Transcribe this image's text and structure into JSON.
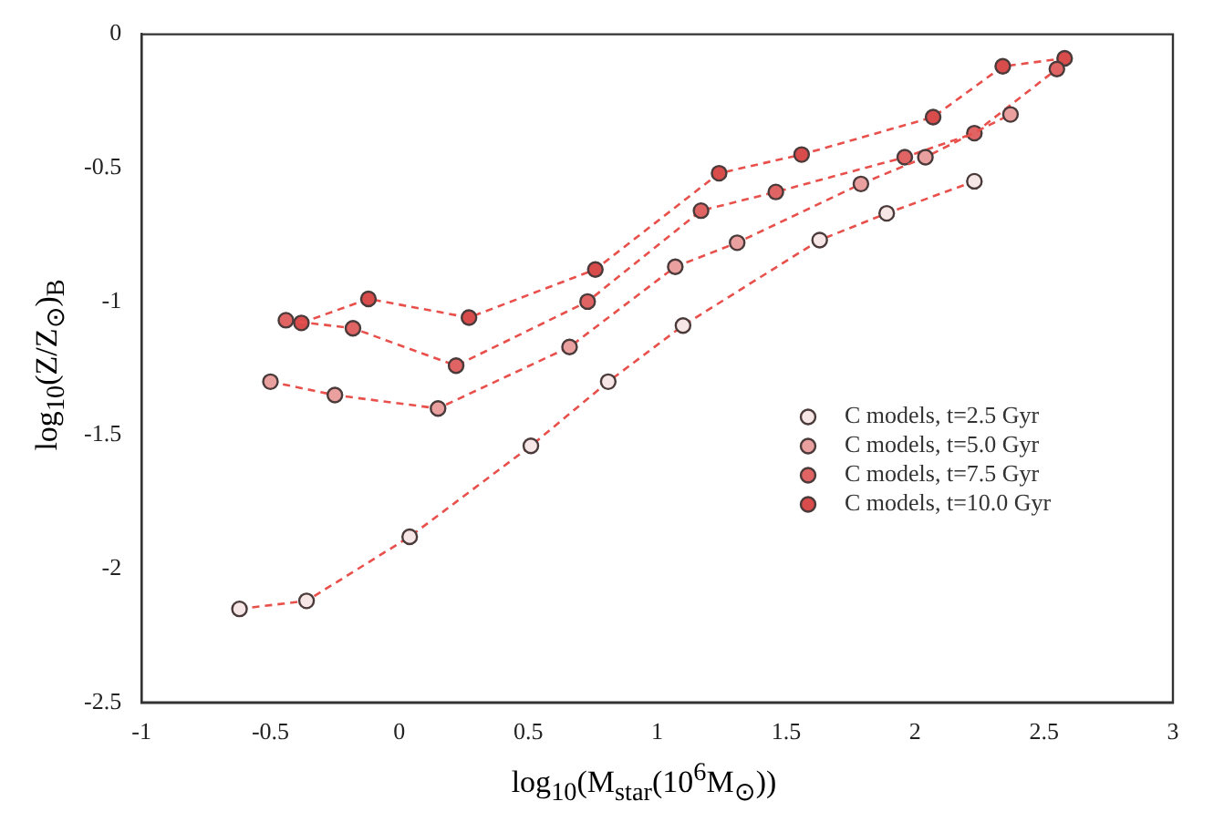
{
  "chart_data": {
    "type": "line",
    "xlabel": "log$_{10}$(M$_{star}$(10$^{6}$M$_{⊙}$))",
    "ylabel": "log$_{10}$(Z/Z$_{⊙}$)$_{B}$",
    "xlim": [
      -1,
      3
    ],
    "xticks": [
      -1,
      -0.5,
      0,
      0.5,
      1,
      1.5,
      2,
      2.5,
      3
    ],
    "ylim": [
      -2.5,
      0
    ],
    "yticks": [
      -2.5,
      -2,
      -1.5,
      -1,
      -0.5,
      0
    ],
    "marker": "circle",
    "line_style": "dashed",
    "legend": "right",
    "grid": false,
    "series": [
      {
        "name": "C models, t=2.5 Gyr",
        "color": "#f6e6e6",
        "x": [
          -0.62,
          -0.36,
          0.04,
          0.51,
          0.81,
          1.1,
          1.63,
          1.89,
          2.23
        ],
        "values": [
          -2.15,
          -2.12,
          -1.88,
          -1.54,
          -1.3,
          -1.09,
          -0.77,
          -0.67,
          -0.55
        ]
      },
      {
        "name": "C models, t=5.0 Gyr",
        "color": "#eba0a0",
        "x": [
          -0.5,
          -0.25,
          0.15,
          0.66,
          1.07,
          1.31,
          1.79,
          2.04,
          2.37
        ],
        "values": [
          -1.3,
          -1.35,
          -1.4,
          -1.17,
          -0.87,
          -0.78,
          -0.56,
          -0.46,
          -0.3
        ]
      },
      {
        "name": "C models, t=7.5 Gyr",
        "color": "#e06464",
        "x": [
          -0.44,
          -0.18,
          0.22,
          0.73,
          1.17,
          1.46,
          1.96,
          2.23,
          2.55
        ],
        "values": [
          -1.07,
          -1.1,
          -1.24,
          -1.0,
          -0.66,
          -0.59,
          -0.46,
          -0.37,
          -0.13
        ]
      },
      {
        "name": "C models, t=10.0 Gyr",
        "color": "#d94c4c",
        "x": [
          -0.38,
          -0.12,
          0.27,
          0.76,
          1.24,
          1.56,
          2.07,
          2.34,
          2.58
        ],
        "values": [
          -1.08,
          -0.99,
          -1.06,
          -0.88,
          -0.52,
          -0.45,
          -0.31,
          -0.12,
          -0.09
        ]
      }
    ]
  }
}
